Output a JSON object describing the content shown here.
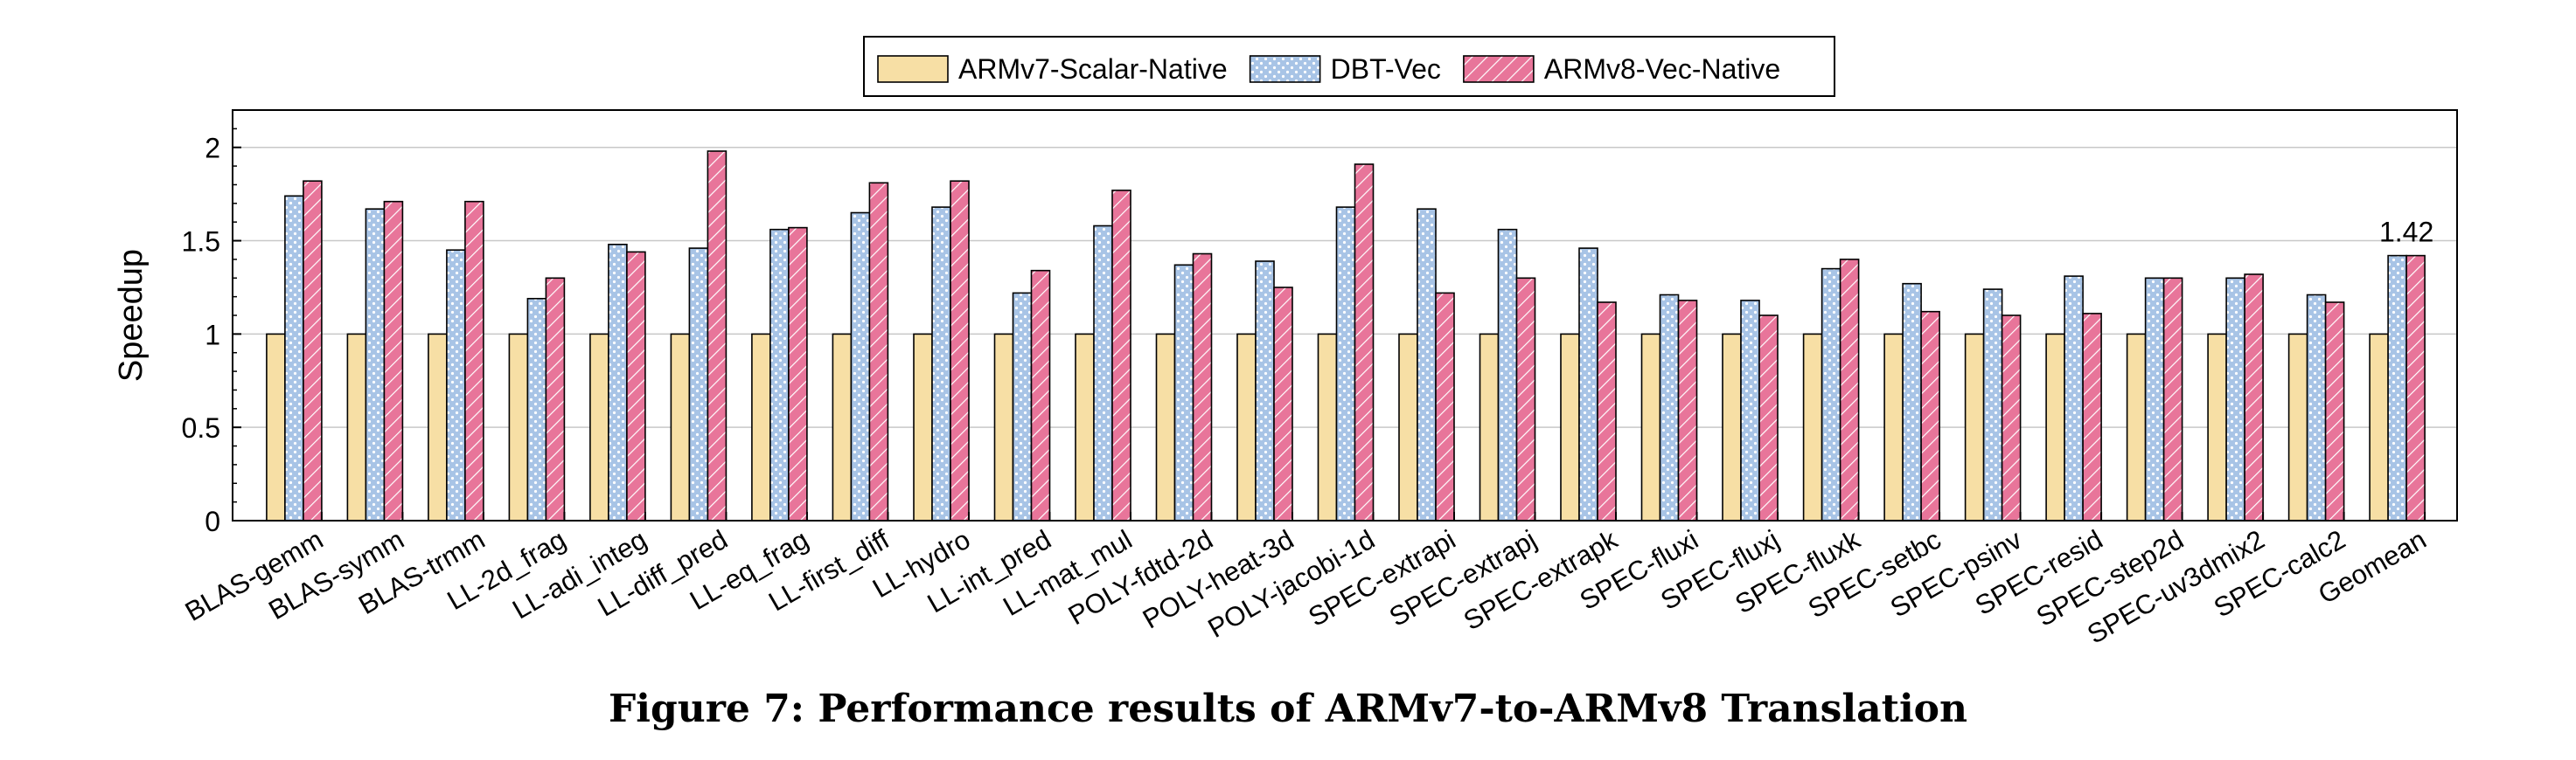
{
  "chart_data": {
    "type": "bar",
    "title": "",
    "xlabel": "",
    "ylabel": "Speedup",
    "ylim": [
      0,
      2.2
    ],
    "yticks": [
      0,
      0.5,
      1,
      1.5,
      2
    ],
    "ytick_labels": [
      "0",
      "0.5",
      "1",
      "1.5",
      "2"
    ],
    "grid": "horizontal",
    "legend_position": "top-center",
    "categories": [
      "BLAS-gemm",
      "BLAS-symm",
      "BLAS-trmm",
      "LL-2d_frag",
      "LL-adi_integ",
      "LL-diff_pred",
      "LL-eq_frag",
      "LL-first_diff",
      "LL-hydro",
      "LL-int_pred",
      "LL-mat_mul",
      "POLY-fdtd-2d",
      "POLY-heat-3d",
      "POLY-jacobi-1d",
      "SPEC-extrapi",
      "SPEC-extrapj",
      "SPEC-extrapk",
      "SPEC-fluxi",
      "SPEC-fluxj",
      "SPEC-fluxk",
      "SPEC-setbc",
      "SPEC-psinv",
      "SPEC-resid",
      "SPEC-step2d",
      "SPEC-uv3dmix2",
      "SPEC-calc2",
      "Geomean"
    ],
    "series": [
      {
        "name": "ARMv7-Scalar-Native",
        "color": "#f7dfa5",
        "pattern": "solid",
        "values": [
          1,
          1,
          1,
          1,
          1,
          1,
          1,
          1,
          1,
          1,
          1,
          1,
          1,
          1,
          1,
          1,
          1,
          1,
          1,
          1,
          1,
          1,
          1,
          1,
          1,
          1,
          1
        ]
      },
      {
        "name": "DBT-Vec",
        "color": "#a8c4e6",
        "pattern": "dots",
        "values": [
          1.74,
          1.67,
          1.45,
          1.19,
          1.48,
          1.46,
          1.56,
          1.65,
          1.68,
          1.22,
          1.58,
          1.37,
          1.39,
          1.68,
          1.67,
          1.56,
          1.46,
          1.21,
          1.18,
          1.35,
          1.27,
          1.24,
          1.31,
          1.3,
          1.3,
          1.21,
          1.42
        ]
      },
      {
        "name": "ARMv8-Vec-Native",
        "color": "#e8759a",
        "pattern": "diagonal-lines",
        "values": [
          1.82,
          1.71,
          1.71,
          1.3,
          1.44,
          1.98,
          1.57,
          1.81,
          1.82,
          1.34,
          1.77,
          1.43,
          1.25,
          1.91,
          1.22,
          1.3,
          1.17,
          1.18,
          1.1,
          1.4,
          1.12,
          1.1,
          1.11,
          1.3,
          1.32,
          1.17,
          1.42
        ]
      }
    ],
    "annotations": [
      {
        "category": "Geomean",
        "text": "1.42"
      }
    ]
  },
  "caption": "Figure 7: Performance results of ARMv7-to-ARMv8 Translation"
}
